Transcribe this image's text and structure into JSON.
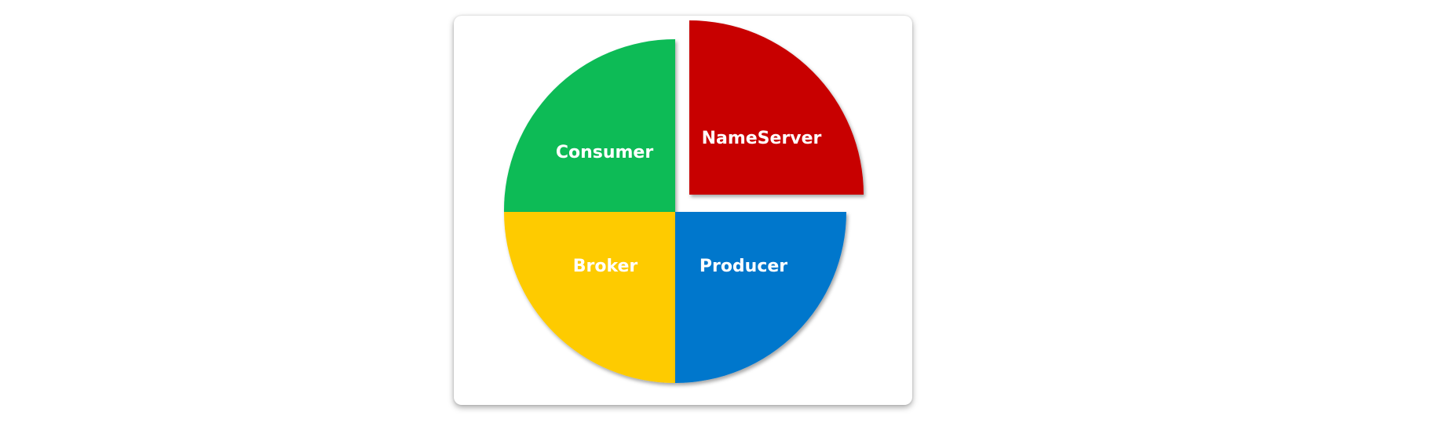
{
  "diagram": {
    "segments": [
      {
        "id": "nameserver",
        "label": "NameServer",
        "color": "#c80606",
        "quadrant": "top-right",
        "exploded": true
      },
      {
        "id": "consumer",
        "label": "Consumer",
        "color": "#08bb57",
        "quadrant": "top-left",
        "exploded": false
      },
      {
        "id": "broker",
        "label": "Broker",
        "color": "#fecb05",
        "quadrant": "bottom-left",
        "exploded": false
      },
      {
        "id": "producer",
        "label": "Producer",
        "color": "#0677cc",
        "quadrant": "bottom-right",
        "exploded": false
      }
    ]
  }
}
